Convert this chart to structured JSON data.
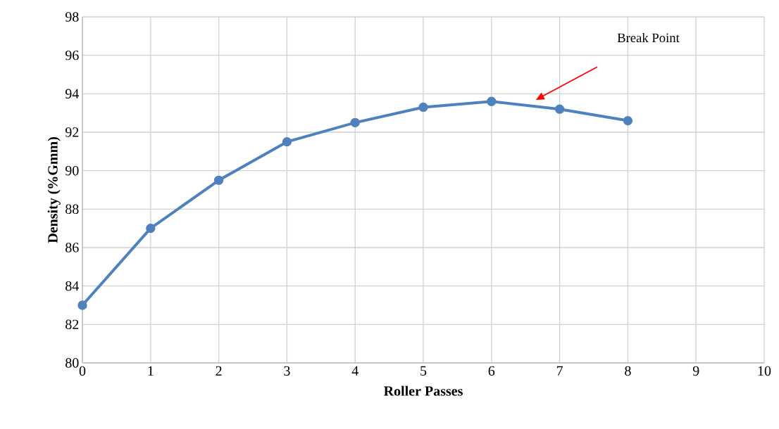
{
  "chart_data": {
    "type": "line",
    "xlabel": "Roller Passes",
    "ylabel": "Density (%Gmm)",
    "x": [
      0,
      1,
      2,
      3,
      4,
      5,
      6,
      7,
      8
    ],
    "values": [
      83.0,
      87.0,
      89.5,
      91.5,
      92.5,
      93.3,
      93.6,
      93.2,
      92.6
    ],
    "color": "#4f81bd",
    "marker": "circle",
    "line_style": "solid",
    "xlim": [
      0,
      10
    ],
    "xticks": [
      0,
      1,
      2,
      3,
      4,
      5,
      6,
      7,
      8,
      9,
      10
    ],
    "ylim": [
      80,
      98
    ],
    "yticks": [
      80,
      82,
      84,
      86,
      88,
      90,
      92,
      94,
      96,
      98
    ],
    "grid": true,
    "annotations": [
      "Break Point"
    ]
  }
}
